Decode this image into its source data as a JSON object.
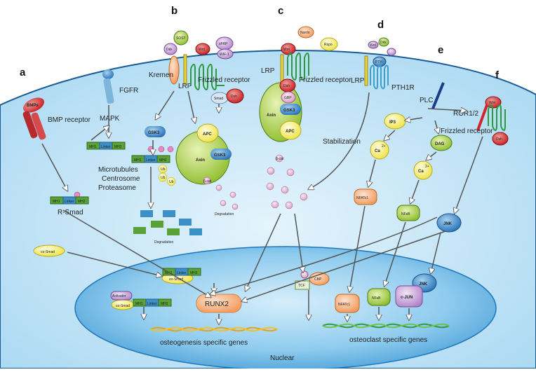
{
  "panels": {
    "a": "a",
    "b": "b",
    "c": "c",
    "d": "d",
    "e": "e",
    "f": "f"
  },
  "panel_a": {
    "ligand": "BMPs",
    "receptor_label": "BMP receptor",
    "fgfr": "FGFR",
    "mapk": "MAPK",
    "mh1": "MH1",
    "linker": "Linker",
    "mh2": "MH2",
    "p": "P",
    "rsmad": "R-Smad",
    "microtubules": "Microtubules",
    "centrosome": "Centrosome",
    "proteasome": "Proteasome",
    "ub": "Ub",
    "gsk3": "GSK3",
    "degradation": "Degradation",
    "cosmad": "co-Smad",
    "nuclear_factor": "Activator"
  },
  "panel_b": {
    "sost": "SOST",
    "dkk": "Dkk",
    "kremen": "Kremen",
    "lrp": "LRP",
    "wnt": "Wnt",
    "sfrp": "sFRP",
    "wif": "WIF-1",
    "frizzled": "Frizzled receptor",
    "smad": "Smad",
    "dsh": "Dsh",
    "apc": "APC",
    "axin": "Axin",
    "gsk3": "GSK3",
    "bcat": "β-cat",
    "degradation": "Degradation"
  },
  "panel_c": {
    "norrin": "Norrin",
    "rspo": "Rspo",
    "wnt": "Wnt",
    "lrp": "LRP",
    "frizzled": "Frizzled receptor",
    "dsh": "Dsh",
    "gbp": "GBP",
    "gsk3": "GSK3",
    "axin": "Axin",
    "apc": "APC",
    "stabilization": "Stabilization",
    "bcat": "β-cat",
    "tcf": "TCF",
    "cbp": "CBP"
  },
  "panel_d": {
    "wnt": "Wnt",
    "dkk": "Dkk",
    "sost": "SOST",
    "pth": "PTH",
    "lrp": "LRP",
    "pth1r": "PTH1R"
  },
  "panel_e": {
    "plc": "PLC",
    "ip3": "IP3",
    "ca": "Ca",
    "ca_sup": "2+",
    "dag": "DAG",
    "nfatc1": "NFATc1",
    "nfkb": "NFκB"
  },
  "panel_f": {
    "wnt": "Wnt",
    "ror": "ROR1/2",
    "frizzled": "Frizzled receptor",
    "dsh": "Dsh",
    "jnk": "JNK",
    "cjun": "c-JUN"
  },
  "nucleus": {
    "runx2": "RUNX2",
    "osteogenesis": "osteogenesis specific genes",
    "osteoclast": "osteoclast specific genes",
    "nuclear": "Nuclear"
  },
  "colors": {
    "cell": "#cfe9f8",
    "nucleus": "#7fc3ea",
    "green": "#9cc93c",
    "wnt_red": "#d9262a",
    "gsk3": "#2f7fc1",
    "yellow": "#f4ec5a",
    "purple": "#c9a6d8",
    "orange": "#f5a56c"
  }
}
